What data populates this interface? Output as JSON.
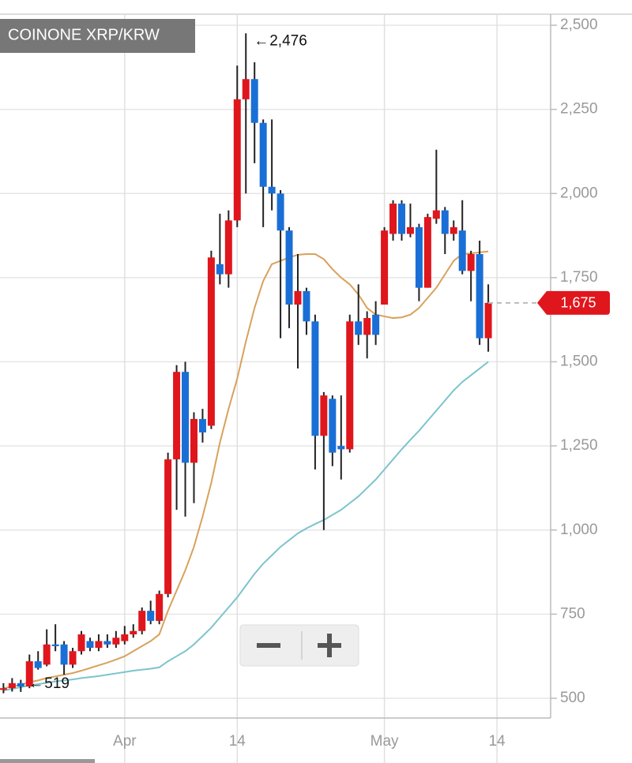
{
  "chart_data": {
    "type": "candlestick",
    "title": "COINONE XRP/KRW",
    "x": [
      -14,
      -13,
      -12,
      -11,
      -10,
      -9,
      -8,
      -7,
      -6,
      -5,
      -4,
      -3,
      -2,
      -1,
      0,
      1,
      2,
      3,
      4,
      5,
      6,
      7,
      8,
      9,
      10,
      11,
      12,
      13,
      14,
      15,
      16,
      17,
      18,
      19,
      20,
      21,
      22,
      23,
      24,
      25,
      26,
      27,
      28,
      29,
      30,
      31,
      32,
      33,
      34,
      35,
      36,
      37,
      38,
      39,
      40,
      41,
      42
    ],
    "open": [
      525,
      530,
      545,
      535,
      610,
      600,
      660,
      660,
      600,
      640,
      670,
      650,
      670,
      660,
      670,
      690,
      700,
      760,
      730,
      810,
      1210,
      1470,
      1200,
      1330,
      1310,
      1790,
      1760,
      1920,
      2280,
      2340,
      2210,
      2020,
      2000,
      1890,
      1670,
      1710,
      1620,
      1280,
      1390,
      1250,
      1240,
      1620,
      1580,
      1640,
      1670,
      1880,
      1970,
      1880,
      1900,
      1720,
      1925,
      1950,
      1880,
      1890,
      1770,
      1820,
      1570
    ],
    "high": [
      545,
      560,
      555,
      630,
      640,
      705,
      720,
      670,
      650,
      700,
      680,
      690,
      690,
      700,
      715,
      720,
      770,
      790,
      820,
      1230,
      1490,
      1500,
      1350,
      1360,
      1830,
      1940,
      1950,
      2380,
      2476,
      2390,
      2220,
      2220,
      2010,
      1900,
      1820,
      1720,
      1640,
      1410,
      1400,
      1400,
      1640,
      1730,
      1650,
      1680,
      1900,
      1980,
      1980,
      1970,
      1910,
      1940,
      2130,
      1960,
      1920,
      1980,
      1830,
      1860,
      1730
    ],
    "low": [
      515,
      520,
      519,
      530,
      585,
      595,
      640,
      570,
      590,
      630,
      640,
      640,
      650,
      650,
      660,
      680,
      690,
      720,
      720,
      800,
      1060,
      1040,
      1080,
      1260,
      1300,
      1730,
      1720,
      1900,
      2000,
      2090,
      1900,
      1950,
      1570,
      1600,
      1480,
      1580,
      1180,
      1000,
      1190,
      1150,
      1230,
      1550,
      1510,
      1550,
      1670,
      1860,
      1860,
      1870,
      1680,
      1720,
      1910,
      1820,
      1860,
      1760,
      1680,
      1550,
      1530
    ],
    "close": [
      530,
      545,
      535,
      610,
      590,
      660,
      655,
      600,
      640,
      690,
      650,
      670,
      660,
      680,
      690,
      700,
      760,
      730,
      810,
      1210,
      1470,
      1200,
      1330,
      1290,
      1810,
      1760,
      1920,
      2280,
      2340,
      2210,
      2020,
      2000,
      1890,
      1670,
      1710,
      1620,
      1280,
      1400,
      1230,
      1240,
      1620,
      1580,
      1630,
      1580,
      1890,
      1970,
      1880,
      1900,
      1720,
      1930,
      1950,
      1880,
      1900,
      1770,
      1820,
      1570,
      1675
    ],
    "up_color": "#e0161d",
    "down_color": "#1a6fd6",
    "series": [
      {
        "color": "#d8a25c",
        "values": [
          530,
          535,
          540,
          548,
          553,
          560,
          565,
          570,
          575,
          582,
          590,
          598,
          606,
          615,
          625,
          640,
          655,
          670,
          690,
          760,
          820,
          880,
          950,
          1040,
          1140,
          1260,
          1360,
          1450,
          1560,
          1660,
          1740,
          1790,
          1800,
          1810,
          1818,
          1820,
          1820,
          1805,
          1775,
          1750,
          1730,
          1700,
          1660,
          1640,
          1635,
          1630,
          1632,
          1640,
          1660,
          1690,
          1720,
          1760,
          1800,
          1820,
          1822,
          1825,
          1828
        ]
      },
      {
        "color": "#7cc4cc",
        "values": [
          523,
          528,
          533,
          538,
          542,
          546,
          550,
          553,
          556,
          560,
          563,
          566,
          570,
          574,
          578,
          582,
          585,
          588,
          592,
          610,
          625,
          640,
          660,
          685,
          710,
          740,
          770,
          800,
          835,
          870,
          900,
          925,
          950,
          970,
          990,
          1005,
          1018,
          1030,
          1045,
          1060,
          1080,
          1100,
          1125,
          1150,
          1180,
          1210,
          1240,
          1268,
          1295,
          1325,
          1355,
          1385,
          1415,
          1440,
          1460,
          1480,
          1500
        ]
      }
    ],
    "xlim": [
      -14.4,
      49.2
    ],
    "xticks": [
      {
        "value": 0,
        "label": "Apr"
      },
      {
        "value": 13,
        "label": "14"
      },
      {
        "value": 30,
        "label": "May"
      },
      {
        "value": 43,
        "label": "14"
      }
    ],
    "ylim": [
      500,
      2500
    ],
    "yticks": [
      {
        "value": 500,
        "label": "500"
      },
      {
        "value": 750,
        "label": "750"
      },
      {
        "value": 1000,
        "label": "1,000"
      },
      {
        "value": 1250,
        "label": "1,250"
      },
      {
        "value": 1500,
        "label": "1,500"
      },
      {
        "value": 1750,
        "label": "1,750"
      },
      {
        "value": 2000,
        "label": "2,000"
      },
      {
        "value": 2250,
        "label": "2,250"
      },
      {
        "value": 2500,
        "label": "2,500"
      }
    ],
    "grid": true,
    "annotations": [
      {
        "x": 14,
        "value": 2476,
        "label": "2,476"
      },
      {
        "x": -12,
        "value": 519,
        "label": "519"
      }
    ],
    "last_price": {
      "value": 1675,
      "label": "1,675"
    }
  }
}
